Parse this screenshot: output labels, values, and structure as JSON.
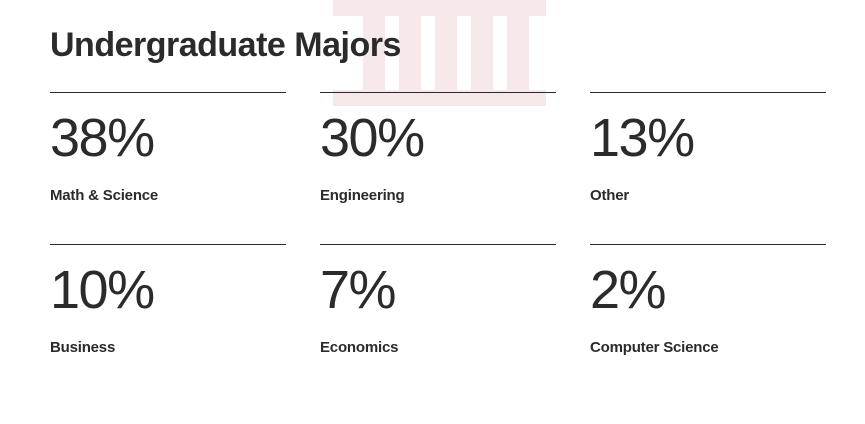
{
  "title": "Undergraduate Majors",
  "stats": [
    {
      "value": "38%",
      "label": "Math & Science"
    },
    {
      "value": "30%",
      "label": "Engineering"
    },
    {
      "value": "13%",
      "label": "Other"
    },
    {
      "value": "10%",
      "label": "Business"
    },
    {
      "value": "7%",
      "label": "Economics"
    },
    {
      "value": "2%",
      "label": "Computer Science"
    }
  ],
  "colors": {
    "text": "#2b2b2b",
    "background": "#ffffff",
    "watermark": "#f7e8ea"
  },
  "icons": {
    "background_graphic": "building-columns-icon"
  }
}
